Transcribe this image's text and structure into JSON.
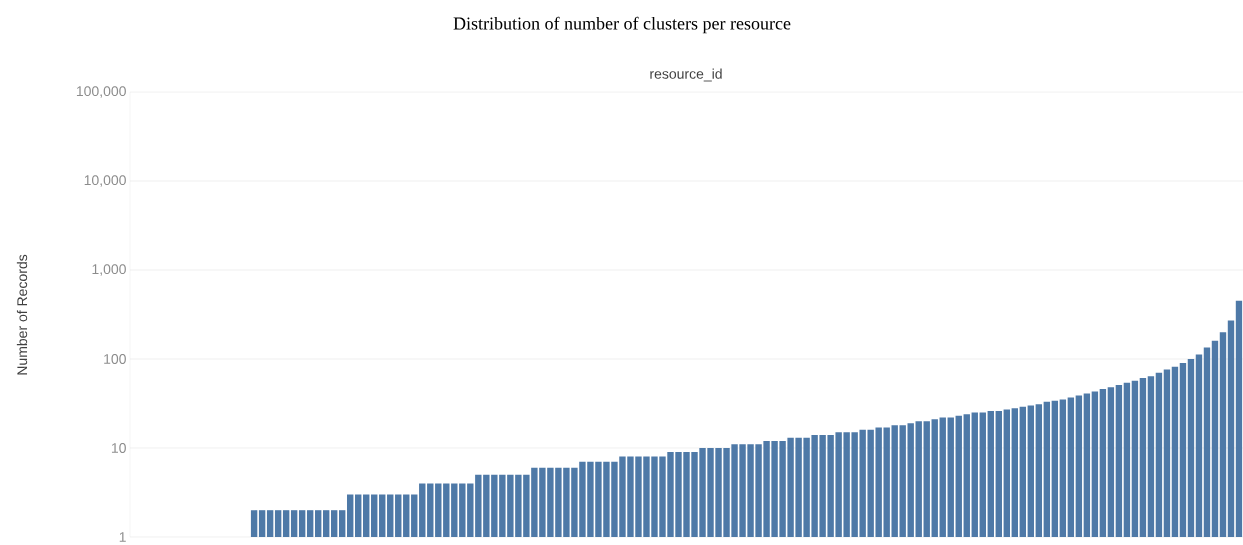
{
  "chart_data": {
    "type": "bar",
    "title": "Distribution of number of clusters per resource",
    "xlabel": "resource_id",
    "ylabel": "Number of Records",
    "color": "#4e79a7",
    "log": "y",
    "grid": "y",
    "tick_labels": "y",
    "ylim": [
      1,
      100000
    ],
    "yticks": [
      {
        "value": 1,
        "label": "1"
      },
      {
        "value": 10,
        "label": "10"
      },
      {
        "value": 100,
        "label": "100"
      },
      {
        "value": 1000,
        "label": "1,000"
      },
      {
        "value": 10000,
        "label": "10,000"
      },
      {
        "value": 100000,
        "label": "100,000"
      }
    ],
    "categories": [
      null,
      null,
      null,
      null,
      null,
      null,
      null,
      null,
      null,
      null,
      null,
      null,
      null,
      null,
      null,
      null,
      null,
      null,
      null,
      null,
      null,
      null,
      null,
      null,
      null,
      null,
      null,
      null,
      null,
      null,
      null,
      null,
      null,
      null,
      null,
      null,
      null,
      null,
      null,
      null,
      null,
      null,
      null,
      null,
      null,
      null,
      null,
      null,
      null,
      null,
      null,
      null,
      null,
      null,
      null,
      null,
      null,
      null,
      null,
      null,
      null,
      null,
      null,
      null,
      null,
      null,
      null,
      null,
      null,
      null,
      null,
      null,
      null,
      null,
      null,
      null,
      null,
      null,
      null,
      null,
      null,
      null,
      null,
      null,
      null,
      null,
      null,
      null,
      null,
      null,
      null,
      null,
      null,
      null,
      null,
      null,
      null,
      null,
      null,
      null,
      null,
      null,
      null,
      null,
      null,
      null,
      null,
      null,
      null,
      null,
      null,
      null,
      null,
      null,
      null,
      null,
      null,
      null,
      null,
      null,
      null,
      null,
      null,
      null,
      null,
      null,
      null,
      null,
      null,
      null,
      null,
      null,
      null,
      null,
      null,
      null,
      null,
      null,
      null
    ],
    "values": [
      1,
      1,
      1,
      1,
      1,
      1,
      1,
      1,
      1,
      1,
      1,
      1,
      1,
      1,
      1,
      2,
      2,
      2,
      2,
      2,
      2,
      2,
      2,
      2,
      2,
      2,
      2,
      3,
      3,
      3,
      3,
      3,
      3,
      3,
      3,
      3,
      4,
      4,
      4,
      4,
      4,
      4,
      4,
      5,
      5,
      5,
      5,
      5,
      5,
      5,
      6,
      6,
      6,
      6,
      6,
      6,
      7,
      7,
      7,
      7,
      7,
      8,
      8,
      8,
      8,
      8,
      8,
      9,
      9,
      9,
      9,
      10,
      10,
      10,
      10,
      11,
      11,
      11,
      11,
      12,
      12,
      12,
      13,
      13,
      13,
      14,
      14,
      14,
      15,
      15,
      15,
      16,
      16,
      17,
      17,
      18,
      18,
      19,
      20,
      20,
      21,
      22,
      22,
      23,
      24,
      25,
      25,
      26,
      26,
      27,
      28,
      29,
      30,
      31,
      33,
      34,
      35,
      37,
      39,
      41,
      43,
      46,
      48,
      51,
      54,
      57,
      61,
      64,
      70,
      76,
      82,
      90,
      100,
      112,
      135,
      160,
      200,
      270,
      450
    ]
  }
}
